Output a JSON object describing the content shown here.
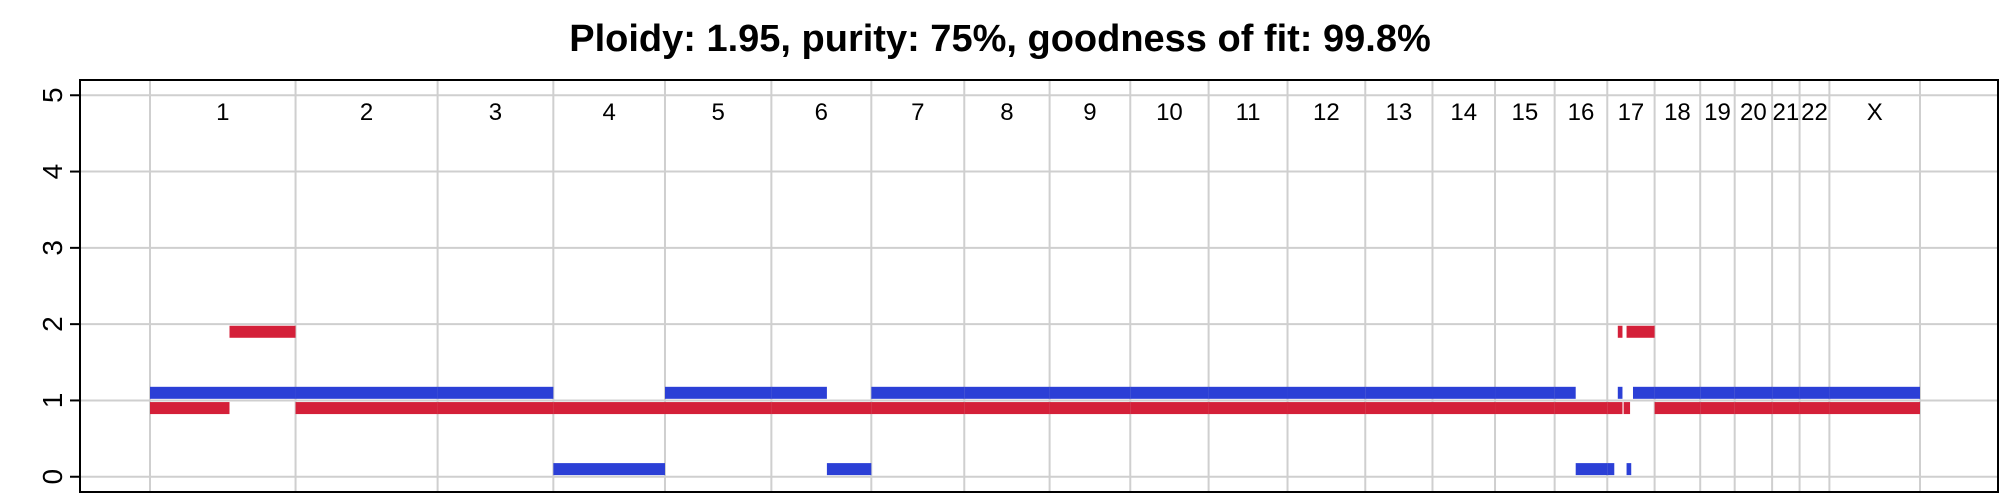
{
  "chart_data": {
    "type": "bar",
    "title": "Ploidy: 1.95, purity: 75%, goodness of fit: 99.8%",
    "xlabel": "",
    "ylabel": "",
    "ylim": [
      -0.2,
      5.2
    ],
    "y_ticks": [
      "0",
      "1",
      "2",
      "3",
      "4",
      "5"
    ],
    "grid": true,
    "chromosomes": [
      "1",
      "2",
      "3",
      "4",
      "5",
      "6",
      "7",
      "8",
      "9",
      "10",
      "11",
      "12",
      "13",
      "14",
      "15",
      "16",
      "17",
      "18",
      "19",
      "20",
      "21",
      "22",
      "X"
    ],
    "chromosome_sizes_mb": [
      249,
      243,
      198,
      191,
      182,
      171,
      159,
      146,
      138,
      134,
      135,
      133,
      115,
      107,
      102,
      90,
      81,
      78,
      59,
      64,
      47,
      51,
      155
    ],
    "series": [
      {
        "color": "#2b3fd6",
        "segments": [
          {
            "chrom": "1",
            "start": 0,
            "end": 249,
            "value": 1.1
          },
          {
            "chrom": "2",
            "start": 0,
            "end": 243,
            "value": 1.1
          },
          {
            "chrom": "3",
            "start": 0,
            "end": 198,
            "value": 1.1
          },
          {
            "chrom": "4",
            "start": 0,
            "end": 191,
            "value": 0.1
          },
          {
            "chrom": "5",
            "start": 0,
            "end": 182,
            "value": 1.1
          },
          {
            "chrom": "6",
            "start": 0,
            "end": 95,
            "value": 1.1
          },
          {
            "chrom": "6",
            "start": 95,
            "end": 171,
            "value": 0.1
          },
          {
            "chrom": "7",
            "start": 0,
            "end": 159,
            "value": 1.1
          },
          {
            "chrom": "8",
            "start": 0,
            "end": 146,
            "value": 1.1
          },
          {
            "chrom": "9",
            "start": 0,
            "end": 138,
            "value": 1.1
          },
          {
            "chrom": "10",
            "start": 0,
            "end": 134,
            "value": 1.1
          },
          {
            "chrom": "11",
            "start": 0,
            "end": 135,
            "value": 1.1
          },
          {
            "chrom": "12",
            "start": 0,
            "end": 133,
            "value": 1.1
          },
          {
            "chrom": "13",
            "start": 0,
            "end": 115,
            "value": 1.1
          },
          {
            "chrom": "14",
            "start": 0,
            "end": 107,
            "value": 1.1
          },
          {
            "chrom": "15",
            "start": 0,
            "end": 102,
            "value": 1.1
          },
          {
            "chrom": "16",
            "start": 0,
            "end": 36,
            "value": 1.1
          },
          {
            "chrom": "16",
            "start": 36,
            "end": 90,
            "value": 0.1
          },
          {
            "chrom": "17",
            "start": 0,
            "end": 12,
            "value": 0.1
          },
          {
            "chrom": "17",
            "start": 18,
            "end": 26,
            "value": 1.1
          },
          {
            "chrom": "17",
            "start": 33,
            "end": 41,
            "value": 0.1
          },
          {
            "chrom": "17",
            "start": 44,
            "end": 81,
            "value": 1.1
          },
          {
            "chrom": "18",
            "start": 0,
            "end": 78,
            "value": 1.1
          },
          {
            "chrom": "19",
            "start": 0,
            "end": 59,
            "value": 1.1
          },
          {
            "chrom": "20",
            "start": 0,
            "end": 64,
            "value": 1.1
          },
          {
            "chrom": "21",
            "start": 0,
            "end": 47,
            "value": 1.1
          },
          {
            "chrom": "22",
            "start": 0,
            "end": 51,
            "value": 1.1
          },
          {
            "chrom": "X",
            "start": 0,
            "end": 155,
            "value": 1.1
          }
        ]
      },
      {
        "color": "#d42039",
        "segments": [
          {
            "chrom": "1",
            "start": 0,
            "end": 136,
            "value": 0.9
          },
          {
            "chrom": "1",
            "start": 136,
            "end": 249,
            "value": 1.9
          },
          {
            "chrom": "2",
            "start": 0,
            "end": 243,
            "value": 0.9
          },
          {
            "chrom": "3",
            "start": 0,
            "end": 198,
            "value": 0.9
          },
          {
            "chrom": "4",
            "start": 0,
            "end": 191,
            "value": 0.9
          },
          {
            "chrom": "5",
            "start": 0,
            "end": 182,
            "value": 0.9
          },
          {
            "chrom": "6",
            "start": 0,
            "end": 171,
            "value": 0.9
          },
          {
            "chrom": "7",
            "start": 0,
            "end": 159,
            "value": 0.9
          },
          {
            "chrom": "8",
            "start": 0,
            "end": 146,
            "value": 0.9
          },
          {
            "chrom": "9",
            "start": 0,
            "end": 138,
            "value": 0.9
          },
          {
            "chrom": "10",
            "start": 0,
            "end": 134,
            "value": 0.9
          },
          {
            "chrom": "11",
            "start": 0,
            "end": 135,
            "value": 0.9
          },
          {
            "chrom": "12",
            "start": 0,
            "end": 133,
            "value": 0.9
          },
          {
            "chrom": "13",
            "start": 0,
            "end": 115,
            "value": 0.9
          },
          {
            "chrom": "14",
            "start": 0,
            "end": 107,
            "value": 0.9
          },
          {
            "chrom": "15",
            "start": 0,
            "end": 102,
            "value": 0.9
          },
          {
            "chrom": "16",
            "start": 0,
            "end": 90,
            "value": 0.9
          },
          {
            "chrom": "17",
            "start": 0,
            "end": 26,
            "value": 0.9
          },
          {
            "chrom": "17",
            "start": 28,
            "end": 39,
            "value": 0.9
          },
          {
            "chrom": "17",
            "start": 18,
            "end": 26,
            "value": 1.9
          },
          {
            "chrom": "17",
            "start": 33,
            "end": 81,
            "value": 1.9
          },
          {
            "chrom": "18",
            "start": 0,
            "end": 78,
            "value": 0.9
          },
          {
            "chrom": "19",
            "start": 0,
            "end": 59,
            "value": 0.9
          },
          {
            "chrom": "20",
            "start": 0,
            "end": 64,
            "value": 0.9
          },
          {
            "chrom": "21",
            "start": 0,
            "end": 47,
            "value": 0.9
          },
          {
            "chrom": "22",
            "start": 0,
            "end": 51,
            "value": 0.9
          },
          {
            "chrom": "X",
            "start": 0,
            "end": 155,
            "value": 0.9
          }
        ]
      }
    ]
  }
}
